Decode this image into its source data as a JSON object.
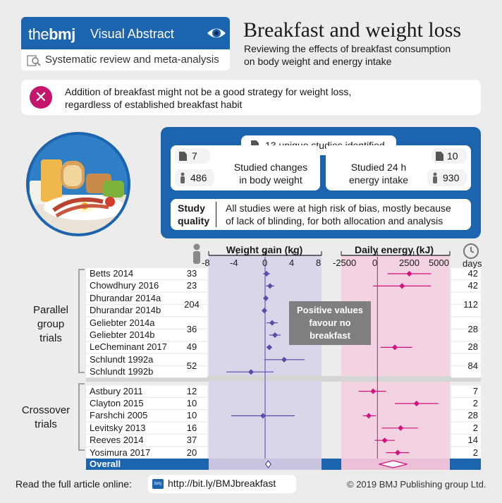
{
  "header": {
    "brand_the": "the",
    "brand_bmj": "bmj",
    "visual_abstract": "Visual Abstract",
    "study_type": "Systematic review and meta-analysis"
  },
  "title": "Breakfast and weight loss",
  "description_line1": "Reviewing the effects of breakfast consumption",
  "description_line2": "on body weight and energy intake",
  "alert": {
    "line1": "Addition of breakfast might not be a good strategy for weight loss,",
    "line2": "regardless of established breakfast habit"
  },
  "summary": {
    "studies_identified": "13 unique studies identified",
    "weight_studies": "7",
    "weight_participants": "486",
    "weight_label_1": "Studied changes",
    "weight_label_2": "in body weight",
    "energy_studies": "10",
    "energy_participants": "930",
    "energy_label_1": "Studied 24 h",
    "energy_label_2": "energy intake",
    "quality_label_1": "Study",
    "quality_label_2": "quality",
    "quality_text_1": "All studies were at high risk of bias, mostly because",
    "quality_text_2": "of lack of blinding, for both allocation and analysis"
  },
  "chart_data": {
    "type": "forest",
    "weight_axis": {
      "label": "Weight gain (kg)",
      "ticks": [
        "-8",
        "-4",
        "0",
        "4",
        "8"
      ],
      "range": [
        -8,
        8
      ]
    },
    "energy_axis": {
      "label": "Daily energy (kJ)",
      "ticks": [
        "-2500",
        "0",
        "2500",
        "5000"
      ],
      "range": [
        -2500,
        5000
      ]
    },
    "days_label": "days",
    "annotation": {
      "line1": "Positive values",
      "line2": "favour no",
      "line3": "breakfast"
    },
    "groups": [
      {
        "label_1": "Parallel",
        "label_2": "group",
        "label_3": "trials"
      },
      {
        "label_1": "Crossover",
        "label_2": "trials"
      }
    ],
    "studies": [
      {
        "name": "Betts 2014",
        "n": "33",
        "days": "42",
        "weight": [
          0.2,
          -0.3,
          0.7
        ],
        "energy": [
          2200,
          700,
          3700
        ]
      },
      {
        "name": "Chowdhury 2016",
        "n": "23",
        "days": "42",
        "weight": [
          0.7,
          0.1,
          1.3
        ],
        "energy": [
          1700,
          -300,
          3700
        ]
      },
      {
        "name": "Dhurandar 2014a",
        "n": "204",
        "days": "112",
        "weight": [
          0.1,
          -0.2,
          0.4
        ],
        "energy": null
      },
      {
        "name": "Dhurandar 2014b",
        "n": "",
        "days": "",
        "weight": [
          -0.1,
          -0.4,
          0.2
        ],
        "energy": null
      },
      {
        "name": "Geliebter 2014a",
        "n": "36",
        "days": "28",
        "weight": [
          1.0,
          0.2,
          1.8
        ],
        "energy": null
      },
      {
        "name": "Geliebter 2014b",
        "n": "",
        "days": "",
        "weight": [
          1.4,
          0.6,
          2.2
        ],
        "energy": null
      },
      {
        "name": "LeCheminant 2017",
        "n": "49",
        "days": "28",
        "weight": [
          0.6,
          0.2,
          1.0
        ],
        "energy": [
          1200,
          200,
          2400
        ]
      },
      {
        "name": "Schlundt 1992a",
        "n": "52",
        "days": "84",
        "weight": [
          2.7,
          -0.1,
          5.6
        ],
        "energy": null
      },
      {
        "name": "Schlundt 1992b",
        "n": "",
        "days": "",
        "weight": [
          -2.0,
          -5.5,
          1.2
        ],
        "energy": null
      },
      {
        "name": "Astbury 2011",
        "n": "12",
        "days": "7",
        "weight": null,
        "energy": [
          -300,
          -1300,
          600
        ]
      },
      {
        "name": "Clayton 2015",
        "n": "10",
        "days": "2",
        "weight": null,
        "energy": [
          2700,
          1200,
          4200
        ]
      },
      {
        "name": "Farshchi 2005",
        "n": "10",
        "days": "28",
        "weight": [
          -0.3,
          -4.8,
          4.2
        ],
        "energy": [
          -600,
          -1000,
          -100
        ]
      },
      {
        "name": "Levitsky 2013",
        "n": "16",
        "days": "2",
        "weight": null,
        "energy": [
          1600,
          300,
          2800
        ]
      },
      {
        "name": "Reeves 2014",
        "n": "37",
        "days": "14",
        "weight": null,
        "energy": [
          500,
          -200,
          1200
        ]
      },
      {
        "name": "Yosimura 2017",
        "n": "20",
        "days": "2",
        "weight": null,
        "energy": [
          1400,
          600,
          2200
        ]
      }
    ],
    "overall": {
      "label": "Overall",
      "weight": [
        0.44,
        0.07,
        0.82
      ],
      "energy": [
        1080,
        100,
        2050
      ]
    }
  },
  "footer": {
    "read_label": "Read the full article online:",
    "link": "http://bit.ly/BMJbreakfast",
    "copyright": "© 2019 BMJ Publishing group Ltd."
  },
  "colors": {
    "bmj_blue": "#1c64ad",
    "magenta": "#d4127e",
    "purple": "#5b4aa6"
  }
}
